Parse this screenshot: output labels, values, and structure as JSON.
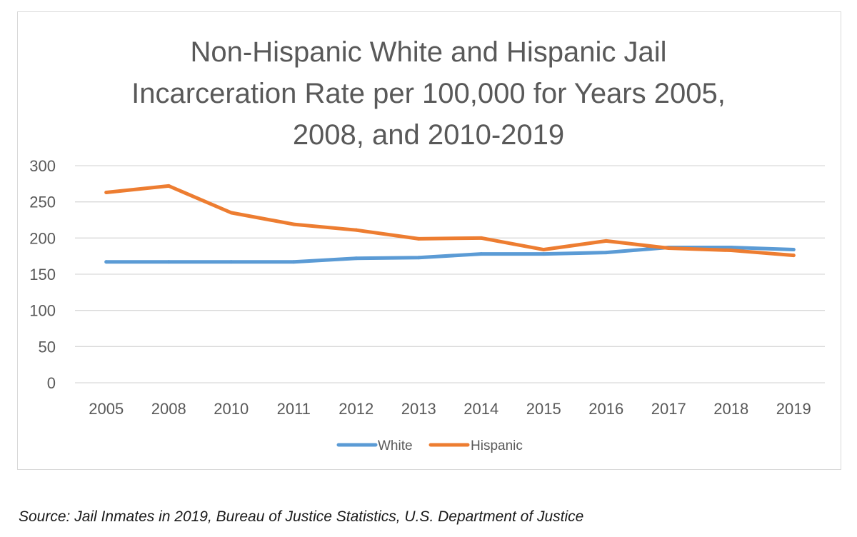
{
  "chart_data": {
    "type": "line",
    "title_lines": [
      "Non-Hispanic White and Hispanic Jail",
      "Incarceration Rate per 100,000 for Years 2005,",
      "2008, and 2010-2019"
    ],
    "categories": [
      "2005",
      "2008",
      "2010",
      "2011",
      "2012",
      "2013",
      "2014",
      "2015",
      "2016",
      "2017",
      "2018",
      "2019"
    ],
    "y_ticks": [
      "0",
      "50",
      "100",
      "150",
      "200",
      "250",
      "300"
    ],
    "ylim": [
      0,
      300
    ],
    "grid": "horizontal",
    "legend_position": "bottom",
    "series": [
      {
        "name": "White",
        "color": "#5b9bd5",
        "values": [
          167,
          167,
          167,
          167,
          172,
          173,
          178,
          178,
          180,
          187,
          187,
          184
        ]
      },
      {
        "name": "Hispanic",
        "color": "#ed7d31",
        "values": [
          263,
          272,
          235,
          219,
          211,
          199,
          200,
          184,
          196,
          186,
          183,
          176
        ]
      }
    ]
  },
  "source_text": "Source: Jail Inmates in 2019, Bureau of Justice Statistics, U.S. Department of Justice"
}
